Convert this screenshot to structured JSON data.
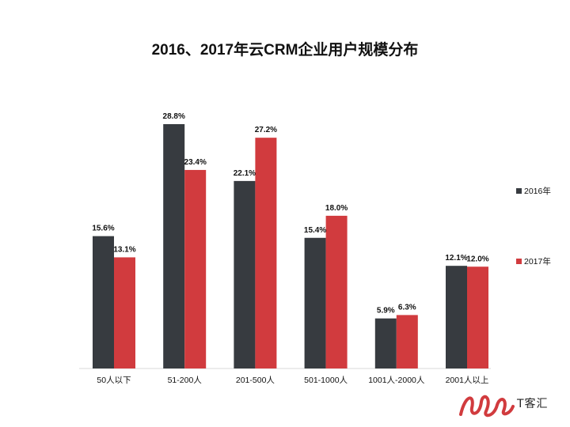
{
  "chart_data": {
    "type": "bar",
    "title": "2016、2017年云CRM企业用户规模分布",
    "categories": [
      "50人以下",
      "51-200人",
      "201-500人",
      "501-1000人",
      "1001人-2000人",
      "2001人以上"
    ],
    "series": [
      {
        "name": "2016年",
        "color": "#373b40",
        "values": [
          15.6,
          28.8,
          22.1,
          15.4,
          5.9,
          12.1
        ],
        "labels": [
          "15.6%",
          "28.8%",
          "22.1%",
          "15.4%",
          "5.9%",
          "12.1%"
        ]
      },
      {
        "name": "2017年",
        "color": "#d13b3e",
        "values": [
          13.1,
          23.4,
          27.2,
          18.0,
          6.3,
          12.0
        ],
        "labels": [
          "13.1%",
          "23.4%",
          "27.2%",
          "18.0%",
          "6.3%",
          "12.0%"
        ]
      }
    ],
    "ylim": [
      0,
      28.8
    ],
    "grid": false,
    "legend_position": "right"
  },
  "watermark": {
    "text": "T客汇",
    "logo_color": "#d13b3e"
  }
}
